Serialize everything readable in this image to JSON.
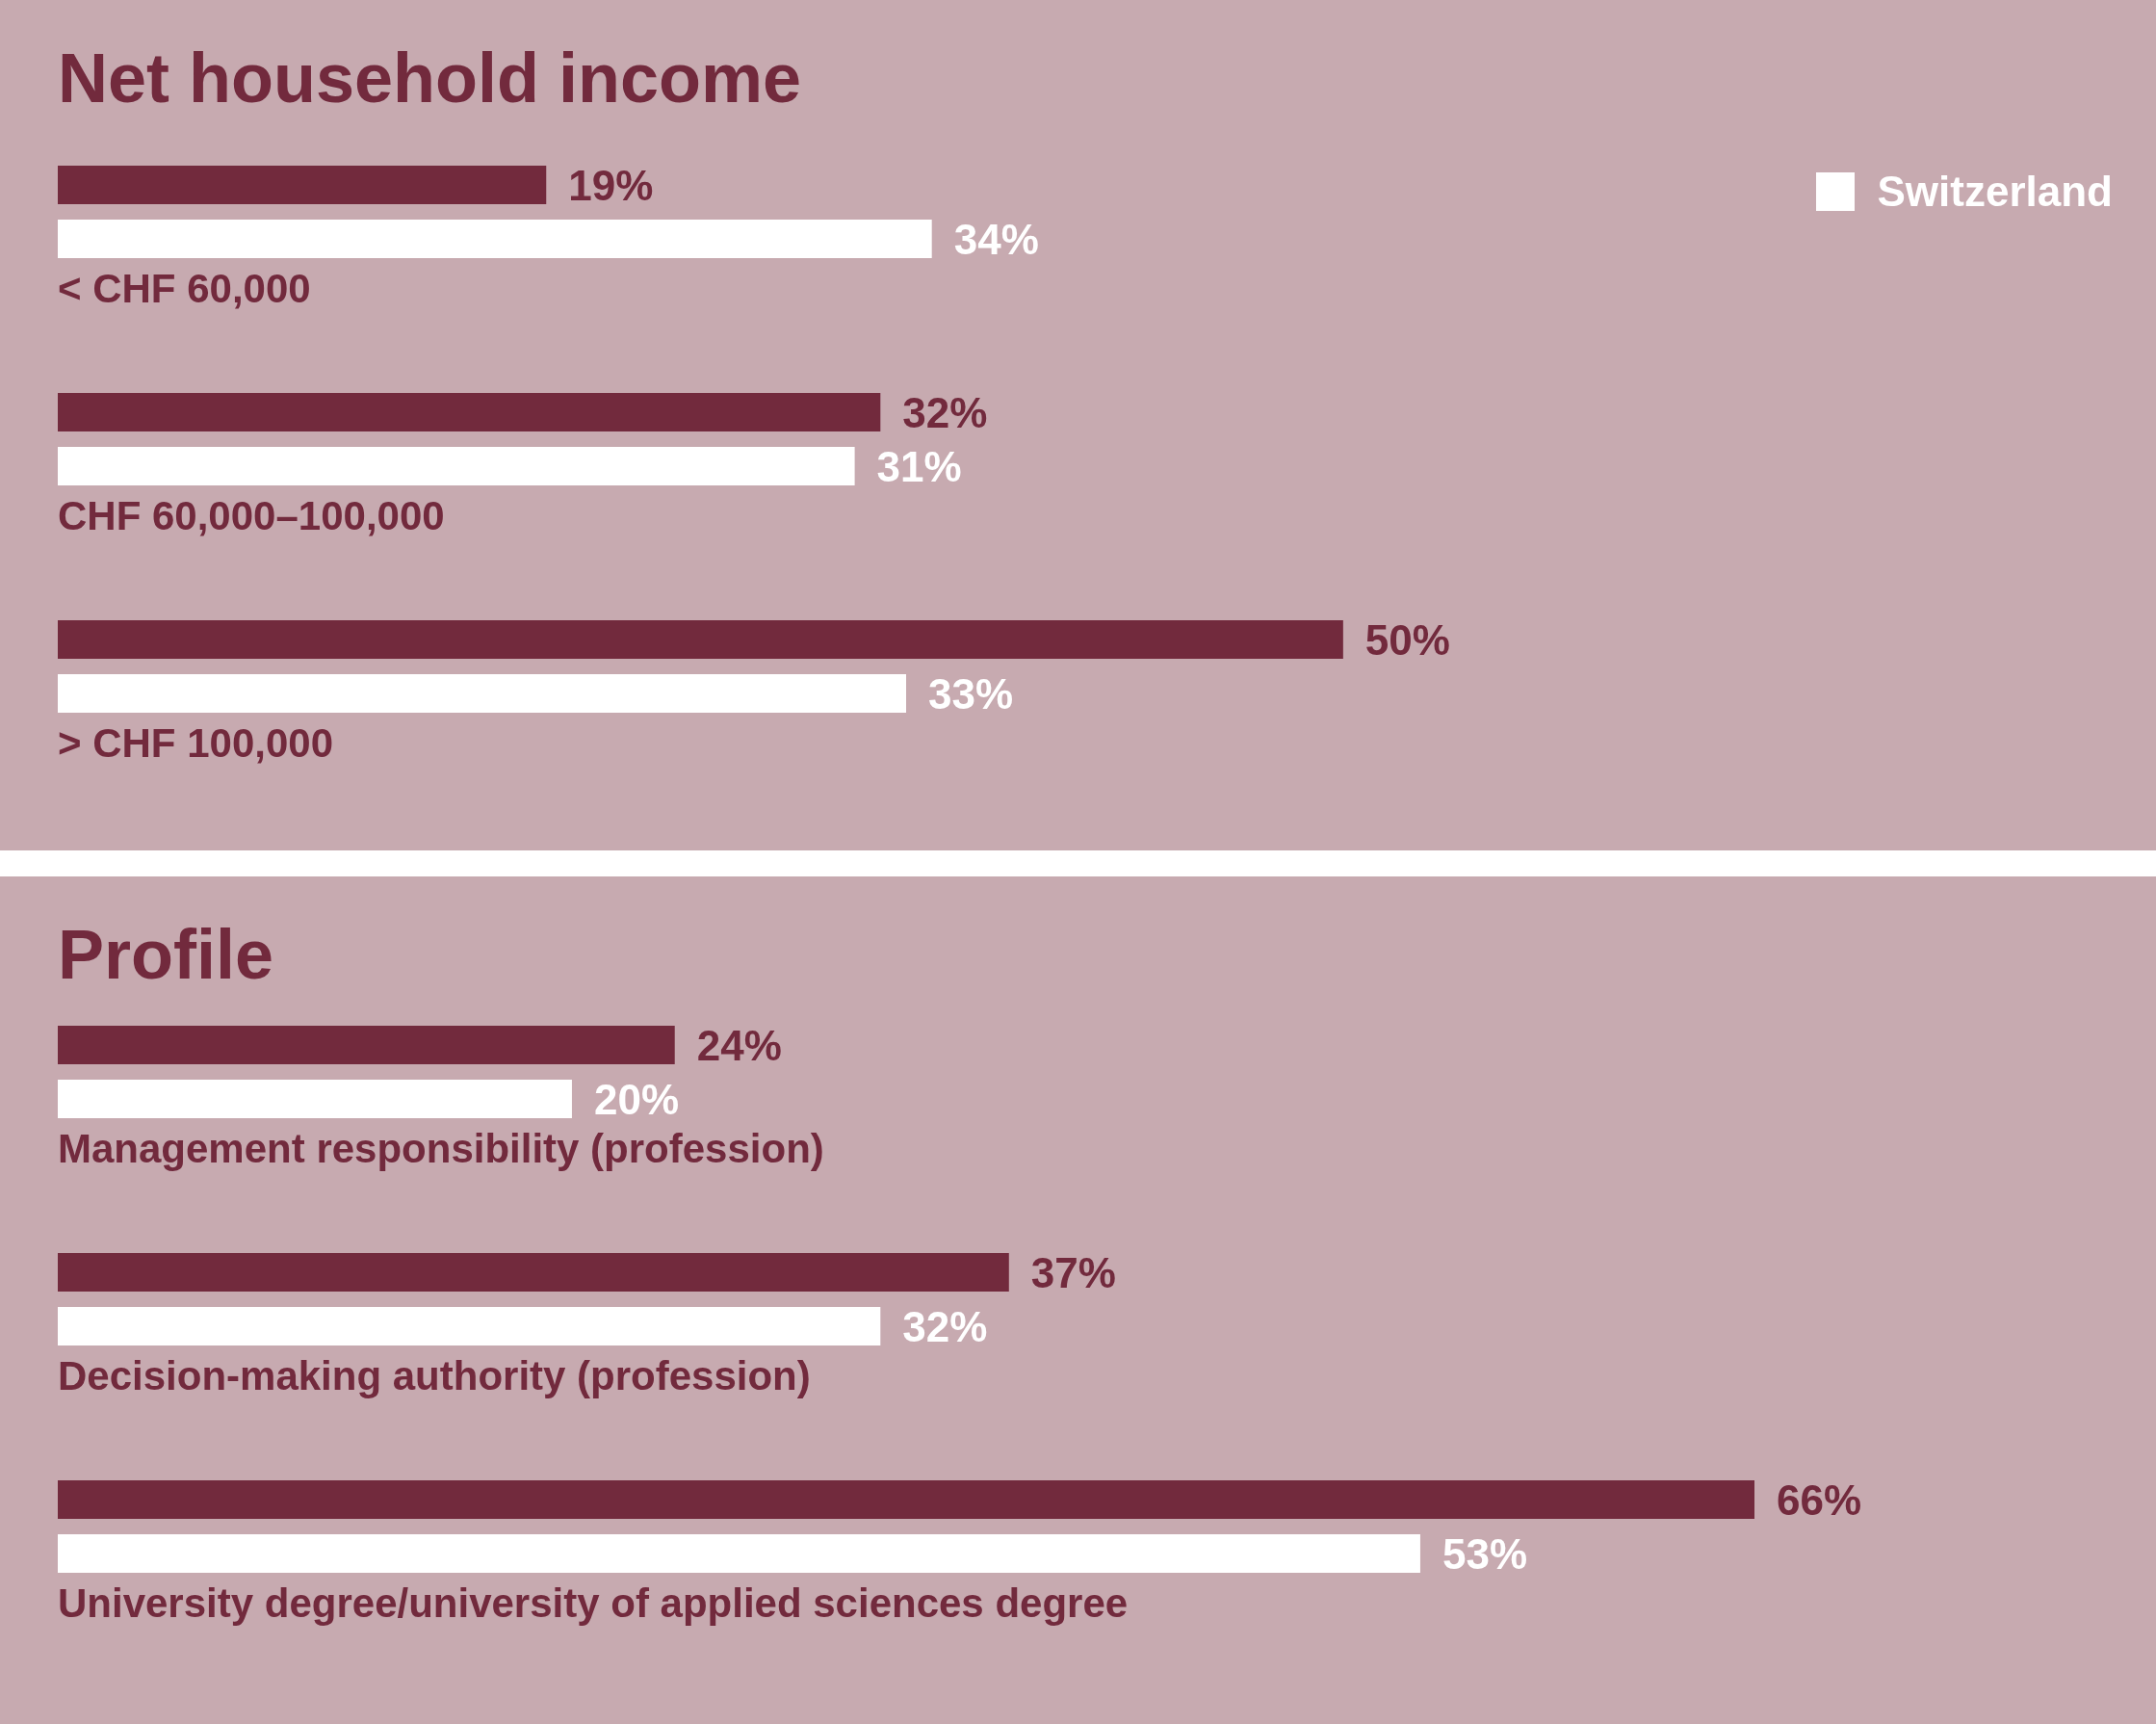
{
  "chart_data": [
    {
      "type": "bar",
      "orientation": "horizontal",
      "title": "Net household income",
      "categories": [
        "< CHF 60,000",
        "CHF 60,000–100,000",
        "> CHF 100,000"
      ],
      "legend": "top right",
      "series": [
        {
          "color": "#722a3d",
          "values": [
            19,
            32,
            50
          ],
          "value_labels": [
            "19%",
            "32%",
            "50%"
          ]
        },
        {
          "name": "Switzerland",
          "color": "#ffffff",
          "values": [
            34,
            31,
            33
          ],
          "value_labels": [
            "34%",
            "31%",
            "33%"
          ]
        }
      ]
    },
    {
      "type": "bar",
      "orientation": "horizontal",
      "title": "Profile",
      "categories": [
        "Management responsibility (profession)",
        "Decision-making authority (profession)",
        "University degree/university of applied sciences degree"
      ],
      "series": [
        {
          "color": "#722a3d",
          "values": [
            24,
            37,
            66
          ],
          "value_labels": [
            "24%",
            "37%",
            "66%"
          ]
        },
        {
          "color": "#ffffff",
          "values": [
            20,
            32,
            53
          ],
          "value_labels": [
            "20%",
            "32%",
            "53%"
          ]
        }
      ]
    }
  ]
}
